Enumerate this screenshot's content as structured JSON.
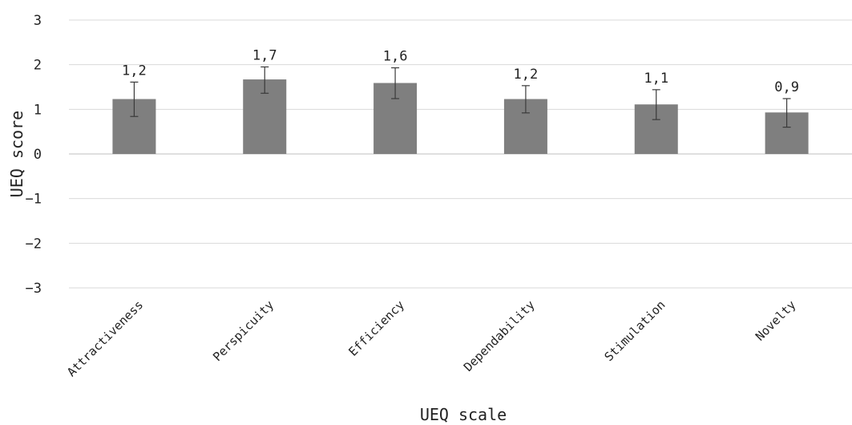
{
  "chart_data": {
    "type": "bar",
    "title": "",
    "xlabel": "UEQ scale",
    "ylabel": "UEQ score",
    "ylim": [
      -3,
      3
    ],
    "yticks": [
      3,
      2,
      1,
      0,
      -1,
      -2,
      -3
    ],
    "ytick_labels": [
      "3",
      "2",
      "1",
      "0",
      "−1",
      "−2",
      "−3"
    ],
    "grid": true,
    "categories": [
      "Attractiveness",
      "Perspicuity",
      "Efficiency",
      "Dependability",
      "Stimulation",
      "Novelty"
    ],
    "values": [
      1.23,
      1.67,
      1.59,
      1.23,
      1.11,
      0.93
    ],
    "value_labels": [
      "1,2",
      "1,7",
      "1,6",
      "1,2",
      "1,1",
      "0,9"
    ],
    "error_lower": [
      0.84,
      1.36,
      1.24,
      0.92,
      0.77,
      0.6
    ],
    "error_upper": [
      1.61,
      1.95,
      1.93,
      1.53,
      1.44,
      1.24
    ],
    "bar_color": "#7f7f7f"
  }
}
